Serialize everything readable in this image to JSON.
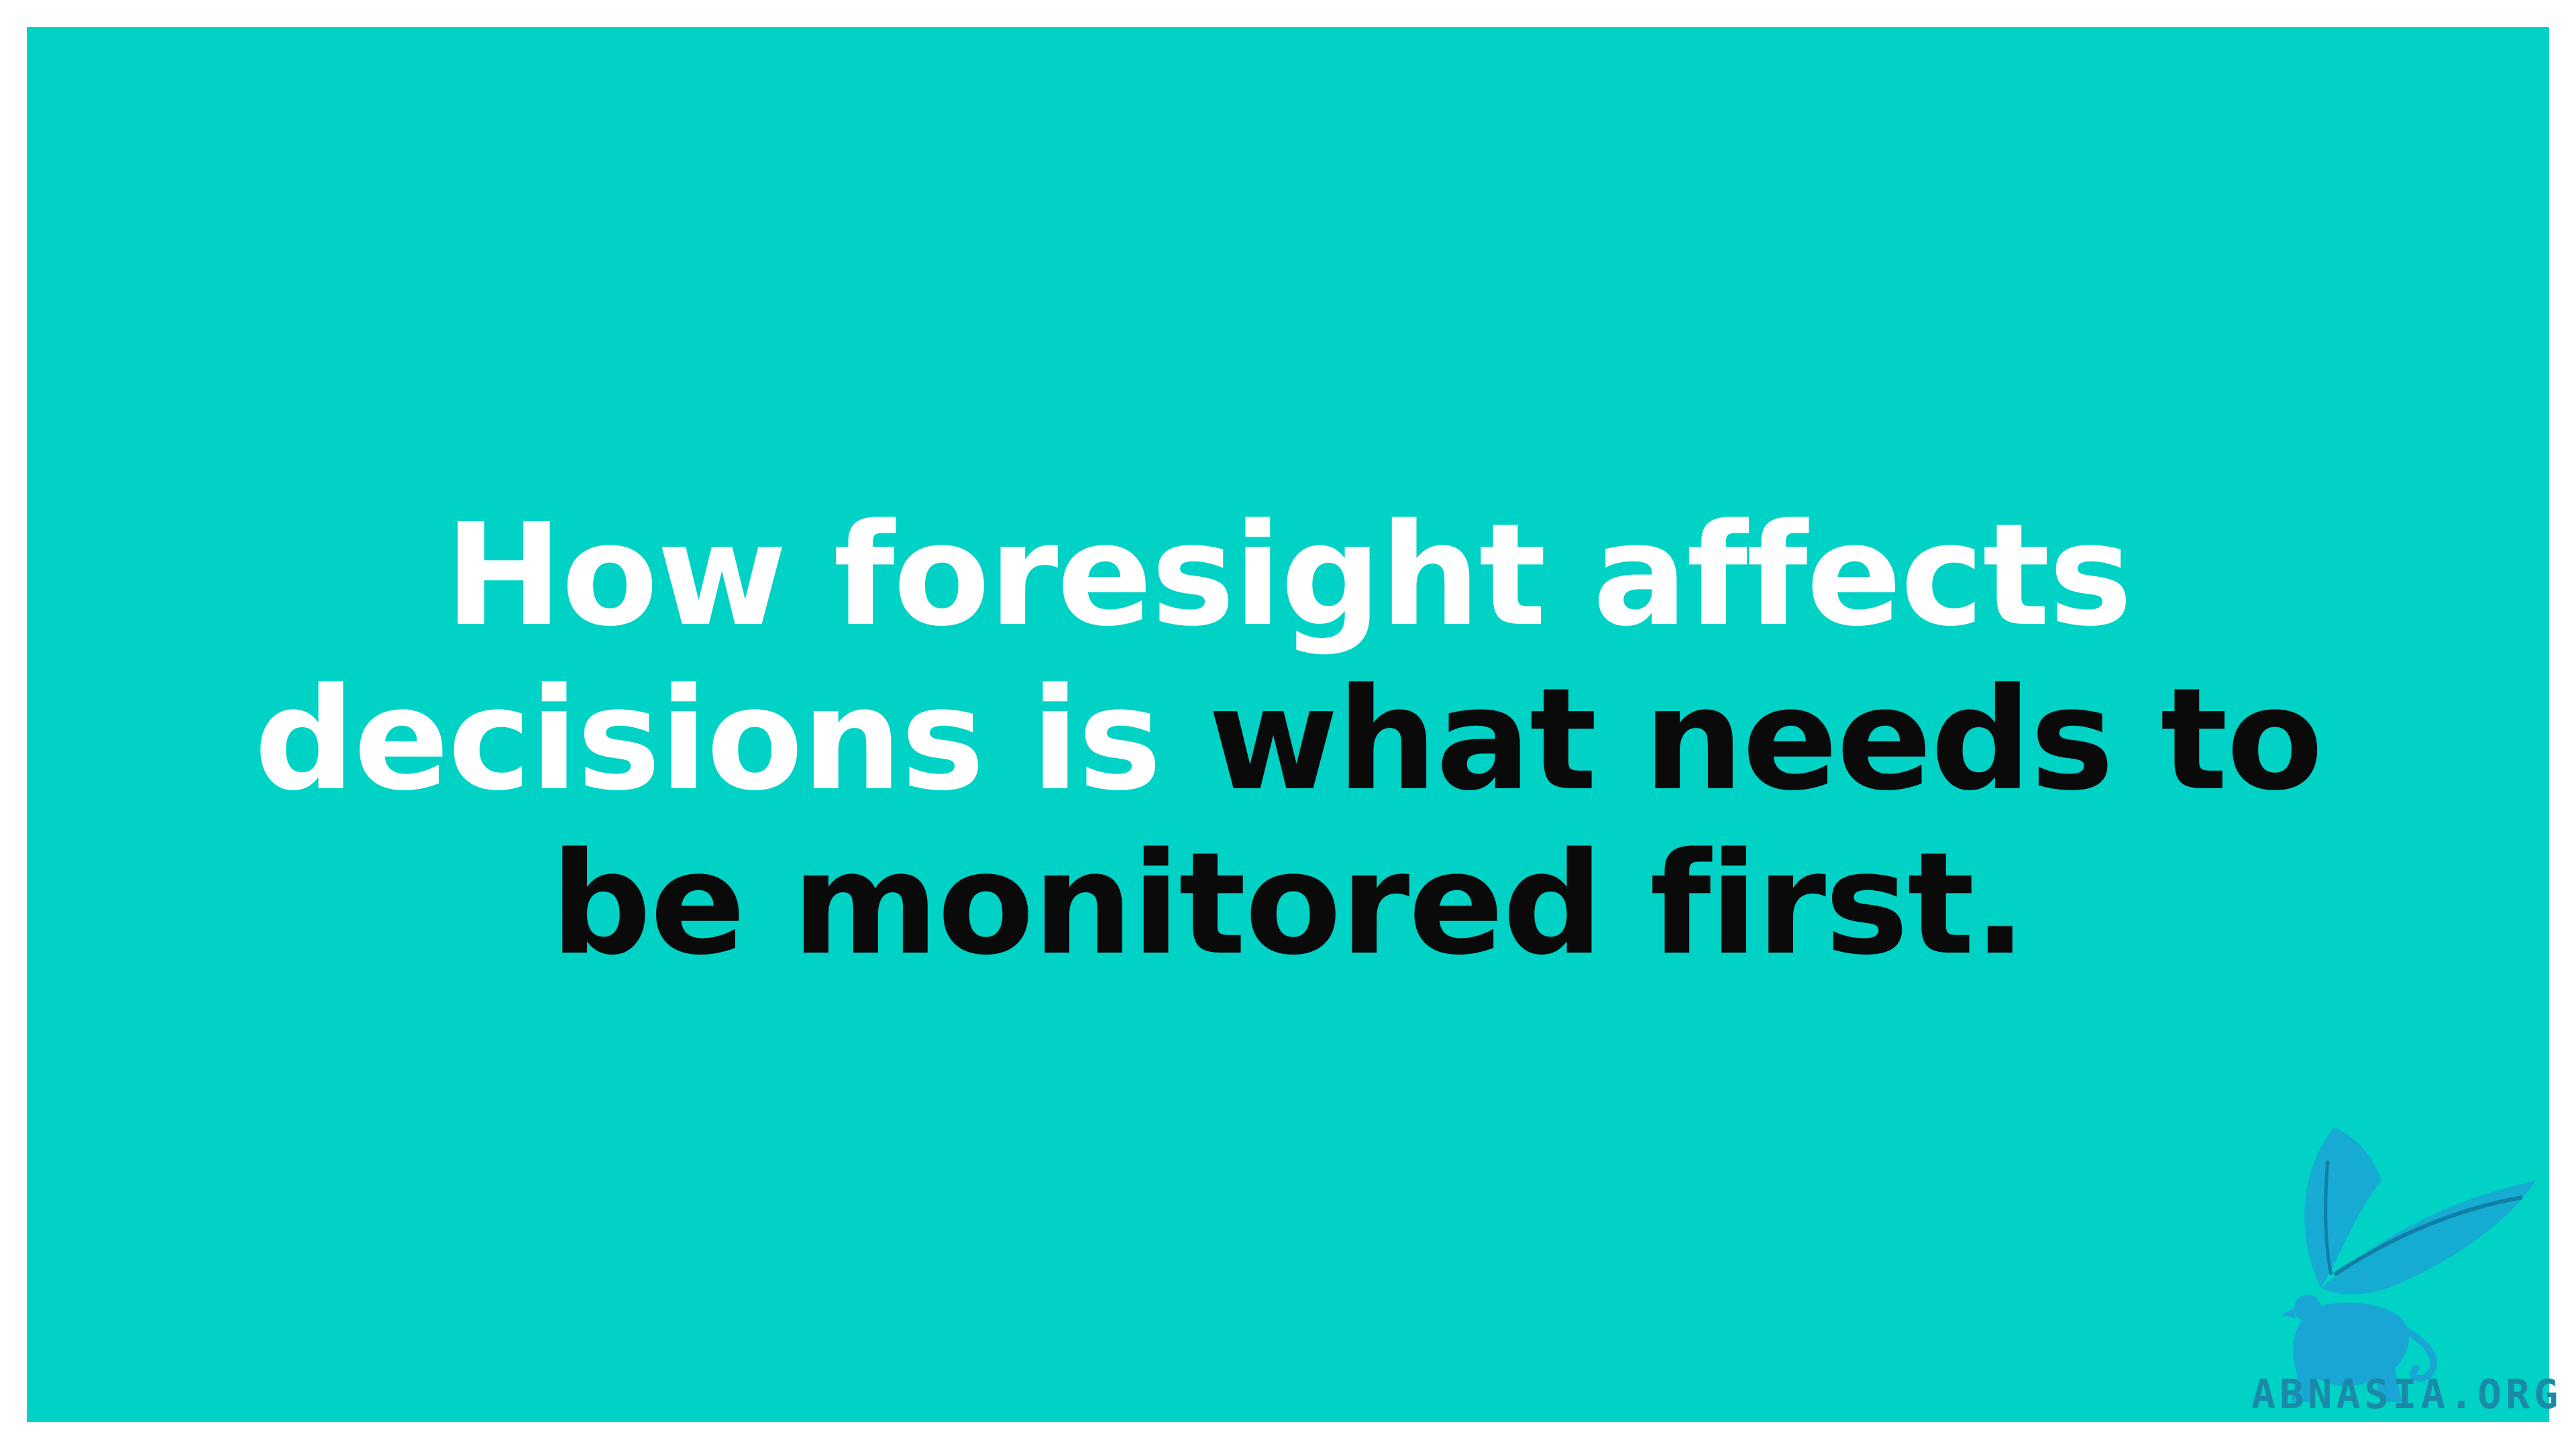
{
  "headline": {
    "line1": "How foresight affects",
    "line2_white": "decisions is",
    "line2_dark": "what needs to",
    "line3": "be monitored first."
  },
  "watermark": {
    "logo_icon": "griffin-feather-icon",
    "text": "ABNASIA.ORG"
  },
  "colors": {
    "background": "#00d2c6",
    "frame": "#ffffff",
    "text_white": "#ffffff",
    "text_dark": "#0a0a0a",
    "watermark": "#1b8aa8"
  }
}
